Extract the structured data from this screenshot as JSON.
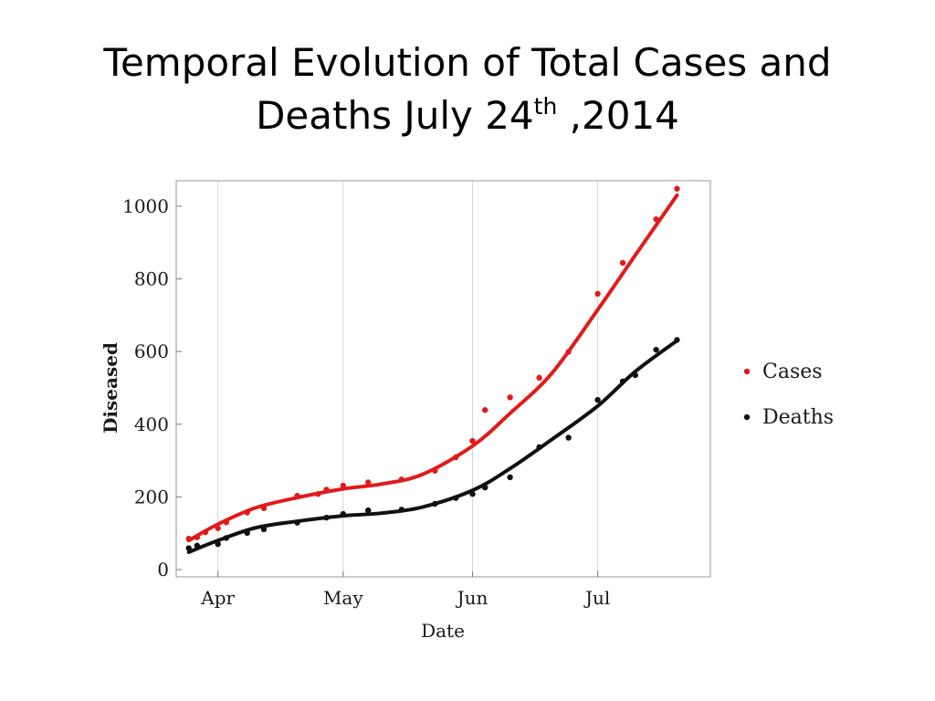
{
  "slide": {
    "title_line1": "Temporal Evolution of Total Cases and",
    "title_line2_main": "Deaths July 24",
    "title_line2_sup": "th",
    "title_line2_tail": " ,2014"
  },
  "chart_data": {
    "type": "scatter",
    "title": "",
    "xlabel": "Date",
    "ylabel": "Diseased",
    "x_tick_labels": [
      "Apr",
      "May",
      "Jun",
      "Jul"
    ],
    "x_tick_dates": [
      "2014-04-01",
      "2014-05-01",
      "2014-06-01",
      "2014-07-01"
    ],
    "xlim": [
      "2014-03-22",
      "2014-07-28"
    ],
    "y_ticks": [
      0,
      200,
      400,
      600,
      800,
      1000
    ],
    "ylim": [
      -20,
      1070
    ],
    "grid": "vertical",
    "legend": "right",
    "series": [
      {
        "name": "Cases",
        "color": "#e01b1b",
        "points": [
          [
            "2014-03-25",
            85
          ],
          [
            "2014-03-27",
            89
          ],
          [
            "2014-03-29",
            103
          ],
          [
            "2014-04-01",
            114
          ],
          [
            "2014-04-03",
            130
          ],
          [
            "2014-04-08",
            157
          ],
          [
            "2014-04-12",
            169
          ],
          [
            "2014-04-20",
            203
          ],
          [
            "2014-04-25",
            208
          ],
          [
            "2014-04-27",
            220
          ],
          [
            "2014-05-01",
            231
          ],
          [
            "2014-05-07",
            240
          ],
          [
            "2014-05-15",
            248
          ],
          [
            "2014-05-23",
            272
          ],
          [
            "2014-05-28",
            309
          ],
          [
            "2014-06-01",
            354
          ],
          [
            "2014-06-04",
            439
          ],
          [
            "2014-06-10",
            474
          ],
          [
            "2014-06-17",
            528
          ],
          [
            "2014-06-24",
            599
          ],
          [
            "2014-07-01",
            759
          ],
          [
            "2014-07-07",
            844
          ],
          [
            "2014-07-15",
            964
          ],
          [
            "2014-07-20",
            1048
          ]
        ],
        "curve": [
          [
            "2014-03-25",
            80
          ],
          [
            "2014-04-01",
            125
          ],
          [
            "2014-04-10",
            170
          ],
          [
            "2014-04-20",
            198
          ],
          [
            "2014-05-01",
            222
          ],
          [
            "2014-05-10",
            235
          ],
          [
            "2014-05-20",
            262
          ],
          [
            "2014-06-01",
            340
          ],
          [
            "2014-06-10",
            430
          ],
          [
            "2014-06-20",
            540
          ],
          [
            "2014-07-01",
            715
          ],
          [
            "2014-07-10",
            865
          ],
          [
            "2014-07-20",
            1030
          ]
        ]
      },
      {
        "name": "Deaths",
        "color": "#111111",
        "points": [
          [
            "2014-03-25",
            59
          ],
          [
            "2014-03-27",
            66
          ],
          [
            "2014-04-01",
            70
          ],
          [
            "2014-04-03",
            87
          ],
          [
            "2014-04-08",
            101
          ],
          [
            "2014-04-12",
            111
          ],
          [
            "2014-04-20",
            129
          ],
          [
            "2014-04-27",
            143
          ],
          [
            "2014-05-01",
            153
          ],
          [
            "2014-05-07",
            163
          ],
          [
            "2014-05-15",
            165
          ],
          [
            "2014-05-23",
            181
          ],
          [
            "2014-05-28",
            197
          ],
          [
            "2014-06-01",
            208
          ],
          [
            "2014-06-04",
            226
          ],
          [
            "2014-06-10",
            254
          ],
          [
            "2014-06-17",
            337
          ],
          [
            "2014-06-24",
            363
          ],
          [
            "2014-07-01",
            467
          ],
          [
            "2014-07-07",
            518
          ],
          [
            "2014-07-10",
            535
          ],
          [
            "2014-07-15",
            605
          ],
          [
            "2014-07-20",
            632
          ]
        ],
        "curve": [
          [
            "2014-03-25",
            48
          ],
          [
            "2014-04-01",
            80
          ],
          [
            "2014-04-10",
            115
          ],
          [
            "2014-04-20",
            133
          ],
          [
            "2014-05-01",
            148
          ],
          [
            "2014-05-10",
            155
          ],
          [
            "2014-05-20",
            172
          ],
          [
            "2014-06-01",
            218
          ],
          [
            "2014-06-10",
            278
          ],
          [
            "2014-06-20",
            358
          ],
          [
            "2014-07-01",
            450
          ],
          [
            "2014-07-10",
            545
          ],
          [
            "2014-07-20",
            630
          ]
        ]
      }
    ]
  }
}
